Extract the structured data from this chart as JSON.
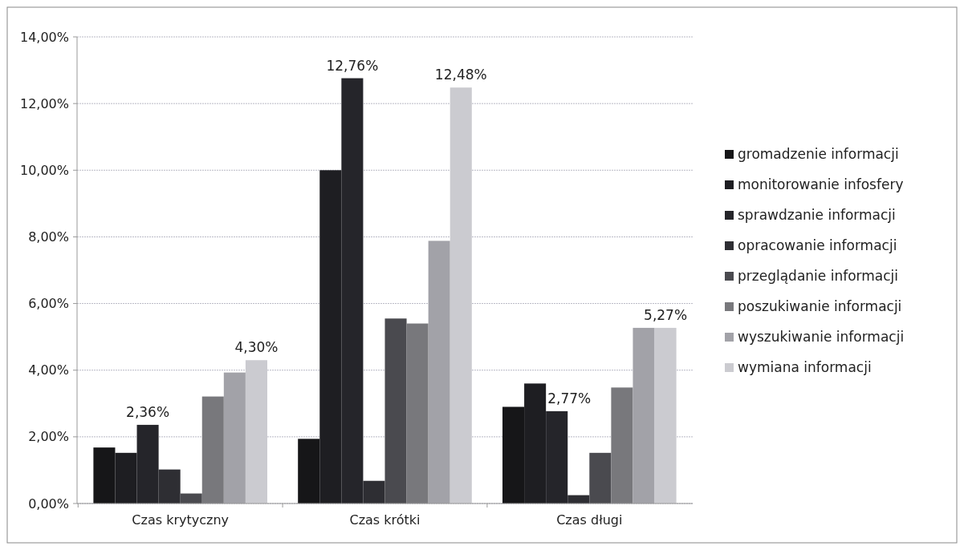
{
  "chart_data": {
    "type": "bar",
    "categories": [
      "Czas krytyczny",
      "Czas krótki",
      "Czas długi"
    ],
    "series": [
      {
        "name": "gromadzenie informacji",
        "color": "#161618",
        "values": [
          1.68,
          1.94,
          2.9
        ],
        "value_labels": [
          null,
          null,
          null
        ]
      },
      {
        "name": "monitorowanie infosfery",
        "color": "#1e1e22",
        "values": [
          1.52,
          10.0,
          3.6
        ],
        "value_labels": [
          null,
          null,
          null
        ]
      },
      {
        "name": "sprawdzanie informacji",
        "color": "#25252a",
        "values": [
          2.36,
          12.76,
          2.77
        ],
        "value_labels": [
          "2,36%",
          "12,76%",
          "2,77%"
        ]
      },
      {
        "name": "opracowanie informacji",
        "color": "#2e2e33",
        "values": [
          1.02,
          0.68,
          0.25
        ],
        "value_labels": [
          null,
          null,
          null
        ]
      },
      {
        "name": "przeglądanie informacji",
        "color": "#4a4a4f",
        "values": [
          0.3,
          5.55,
          1.52
        ],
        "value_labels": [
          null,
          null,
          null
        ]
      },
      {
        "name": "poszukiwanie informacji",
        "color": "#78787c",
        "values": [
          3.21,
          5.4,
          3.48
        ],
        "value_labels": [
          null,
          null,
          null
        ]
      },
      {
        "name": "wyszukiwanie informacji",
        "color": "#a2a2a8",
        "values": [
          3.93,
          7.88,
          5.27
        ],
        "value_labels": [
          null,
          null,
          null
        ]
      },
      {
        "name": "wymiana informacji",
        "color": "#cbcbd0",
        "values": [
          4.3,
          12.48,
          5.27
        ],
        "value_labels": [
          "4,30%",
          "12,48%",
          "5,27%"
        ]
      }
    ],
    "ylim": [
      0,
      14
    ],
    "yticks": [
      {
        "value": 0,
        "label": "0,00%"
      },
      {
        "value": 2,
        "label": "2,00%"
      },
      {
        "value": 4,
        "label": "4,00%"
      },
      {
        "value": 6,
        "label": "6,00%"
      },
      {
        "value": 8,
        "label": "8,00%"
      },
      {
        "value": 10,
        "label": "10,00%"
      },
      {
        "value": 12,
        "label": "12,00%"
      },
      {
        "value": 14,
        "label": "14,00%"
      }
    ],
    "grid": "y",
    "legend": "right"
  }
}
